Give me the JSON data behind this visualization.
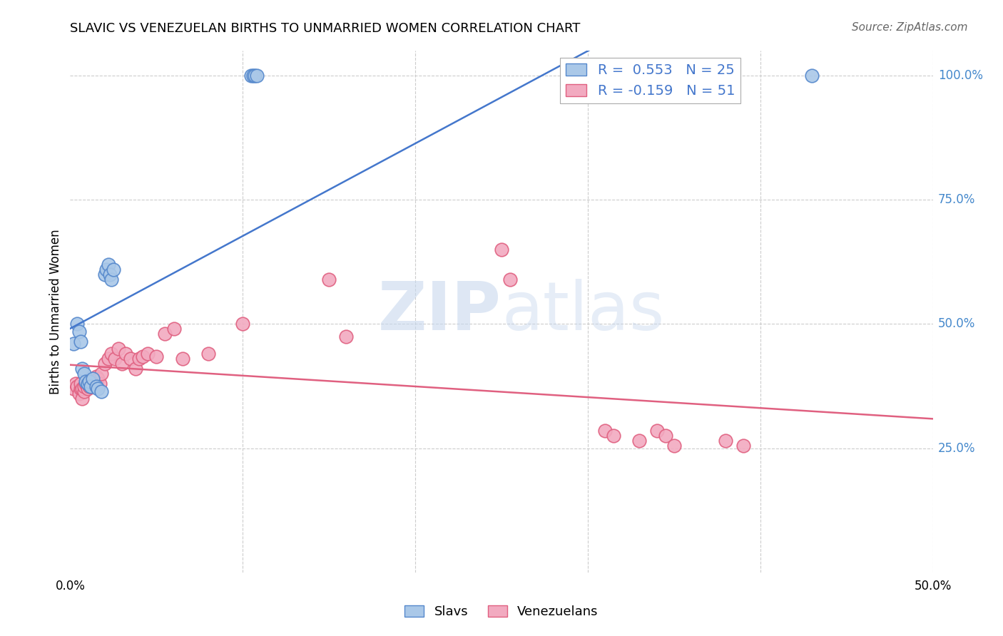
{
  "title": "SLAVIC VS VENEZUELAN BIRTHS TO UNMARRIED WOMEN CORRELATION CHART",
  "source": "Source: ZipAtlas.com",
  "ylabel": "Births to Unmarried Women",
  "xlim": [
    0.0,
    0.5
  ],
  "ylim": [
    0.0,
    1.05
  ],
  "watermark_zip": "ZIP",
  "watermark_atlas": "atlas",
  "legend_blue_label": "Slavs",
  "legend_pink_label": "Venezuelans",
  "slavic_x": [
    0.002,
    0.004,
    0.005,
    0.006,
    0.007,
    0.008,
    0.009,
    0.01,
    0.011,
    0.012,
    0.013,
    0.015,
    0.016,
    0.018,
    0.02,
    0.021,
    0.022,
    0.023,
    0.024,
    0.025,
    0.105,
    0.106,
    0.107,
    0.108,
    0.43
  ],
  "slavic_y": [
    0.46,
    0.5,
    0.485,
    0.465,
    0.41,
    0.4,
    0.385,
    0.38,
    0.385,
    0.375,
    0.39,
    0.375,
    0.37,
    0.365,
    0.6,
    0.61,
    0.62,
    0.6,
    0.59,
    0.61,
    1.0,
    1.0,
    1.0,
    1.0,
    1.0
  ],
  "venezuelan_x": [
    0.002,
    0.003,
    0.004,
    0.005,
    0.006,
    0.006,
    0.007,
    0.007,
    0.008,
    0.008,
    0.009,
    0.01,
    0.01,
    0.011,
    0.012,
    0.013,
    0.014,
    0.015,
    0.016,
    0.017,
    0.018,
    0.02,
    0.022,
    0.024,
    0.026,
    0.028,
    0.03,
    0.032,
    0.035,
    0.038,
    0.04,
    0.042,
    0.045,
    0.05,
    0.055,
    0.06,
    0.065,
    0.08,
    0.1,
    0.15,
    0.16,
    0.25,
    0.255,
    0.31,
    0.315,
    0.33,
    0.34,
    0.345,
    0.35,
    0.38,
    0.39
  ],
  "venezuelan_y": [
    0.37,
    0.38,
    0.375,
    0.36,
    0.37,
    0.38,
    0.35,
    0.37,
    0.365,
    0.375,
    0.38,
    0.37,
    0.38,
    0.375,
    0.375,
    0.38,
    0.385,
    0.395,
    0.39,
    0.38,
    0.4,
    0.42,
    0.43,
    0.44,
    0.43,
    0.45,
    0.42,
    0.44,
    0.43,
    0.41,
    0.43,
    0.435,
    0.44,
    0.435,
    0.48,
    0.49,
    0.43,
    0.44,
    0.5,
    0.59,
    0.475,
    0.65,
    0.59,
    0.285,
    0.275,
    0.265,
    0.285,
    0.275,
    0.255,
    0.265,
    0.255
  ],
  "slavic_color": "#aac8e8",
  "venezuelan_color": "#f2aac0",
  "slavic_edge": "#5588cc",
  "venezuelan_edge": "#e06080",
  "blue_line_color": "#4477cc",
  "pink_line_color": "#e06080",
  "grid_color": "#cccccc",
  "background_color": "#ffffff",
  "right_tick_color": "#4488cc",
  "title_fontsize": 13,
  "source_fontsize": 11,
  "marker_size": 180,
  "line_width": 1.8
}
